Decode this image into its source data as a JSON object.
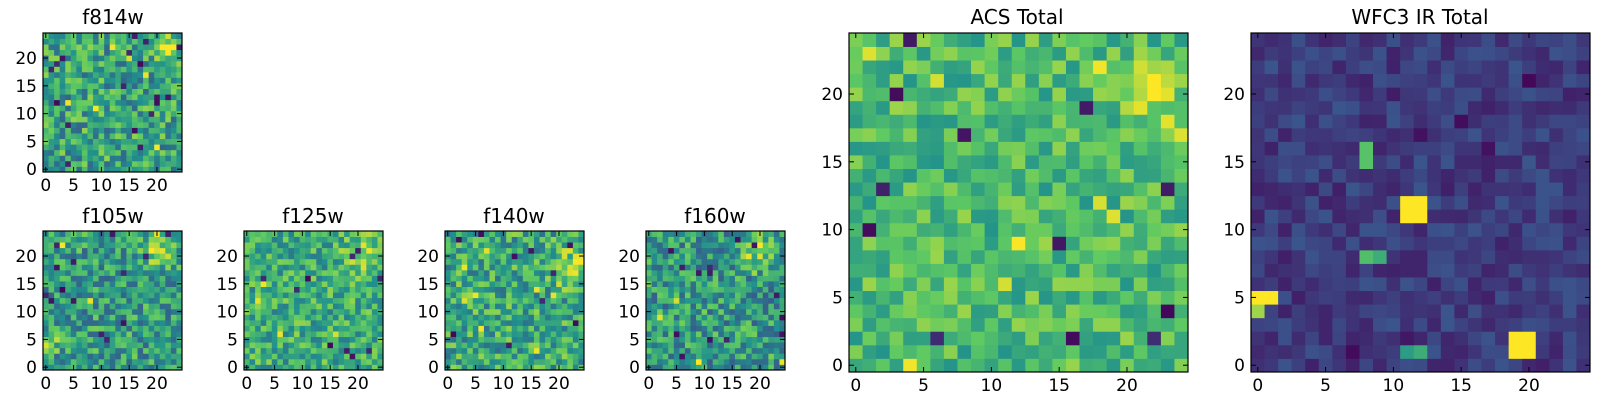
{
  "figure": {
    "colormap": [
      "#440154",
      "#3b528b",
      "#21918c",
      "#5ec962",
      "#fde725"
    ]
  },
  "chart_data": [
    {
      "id": "f814w",
      "type": "heatmap",
      "title": "f814w",
      "grid_size": 25,
      "xlim": [
        0,
        24
      ],
      "ylim": [
        0,
        24
      ],
      "xticks": [
        "0",
        "5",
        "10",
        "15",
        "20"
      ],
      "yticks": [
        "0",
        "5",
        "10",
        "15",
        "20"
      ],
      "seed": 11,
      "base": 0.58,
      "noise": 0.42,
      "warm_regions": [
        {
          "x": 22,
          "y": 22,
          "r": 4,
          "gain": 0.35
        }
      ],
      "dark_pixels": 18,
      "bright_pixels": 6,
      "hot_spots": []
    },
    {
      "id": "f105w",
      "type": "heatmap",
      "title": "f105w",
      "grid_size": 25,
      "xlim": [
        0,
        24
      ],
      "ylim": [
        0,
        24
      ],
      "xticks": [
        "0",
        "5",
        "10",
        "15",
        "20"
      ],
      "yticks": [
        "0",
        "5",
        "10",
        "15",
        "20"
      ],
      "seed": 23,
      "base": 0.55,
      "noise": 0.4,
      "warm_regions": [
        {
          "x": 20,
          "y": 21,
          "r": 5,
          "gain": 0.3
        },
        {
          "x": 1,
          "y": 5,
          "r": 3,
          "gain": 0.3
        }
      ],
      "dark_pixels": 14,
      "bright_pixels": 4,
      "hot_spots": []
    },
    {
      "id": "f125w",
      "type": "heatmap",
      "title": "f125w",
      "grid_size": 25,
      "xlim": [
        0,
        24
      ],
      "ylim": [
        0,
        24
      ],
      "xticks": [
        "0",
        "5",
        "10",
        "15",
        "20"
      ],
      "yticks": [
        "0",
        "5",
        "10",
        "15",
        "20"
      ],
      "seed": 37,
      "base": 0.62,
      "noise": 0.36,
      "warm_regions": [
        {
          "x": 21,
          "y": 20,
          "r": 5,
          "gain": 0.3
        }
      ],
      "dark_pixels": 10,
      "bright_pixels": 6,
      "hot_spots": []
    },
    {
      "id": "f140w",
      "type": "heatmap",
      "title": "f140w",
      "grid_size": 25,
      "xlim": [
        0,
        24
      ],
      "ylim": [
        0,
        24
      ],
      "xticks": [
        "0",
        "5",
        "10",
        "15",
        "20"
      ],
      "yticks": [
        "0",
        "5",
        "10",
        "15",
        "20"
      ],
      "seed": 41,
      "base": 0.6,
      "noise": 0.4,
      "warm_regions": [
        {
          "x": 22,
          "y": 18,
          "r": 5,
          "gain": 0.3
        },
        {
          "x": 4,
          "y": 13,
          "r": 2,
          "gain": 0.35
        }
      ],
      "dark_pixels": 10,
      "bright_pixels": 6,
      "hot_spots": []
    },
    {
      "id": "f160w",
      "type": "heatmap",
      "title": "f160w",
      "grid_size": 25,
      "xlim": [
        0,
        24
      ],
      "ylim": [
        0,
        24
      ],
      "xticks": [
        "0",
        "5",
        "10",
        "15",
        "20"
      ],
      "yticks": [
        "0",
        "5",
        "10",
        "15",
        "20"
      ],
      "seed": 53,
      "base": 0.54,
      "noise": 0.42,
      "warm_regions": [
        {
          "x": 20,
          "y": 21,
          "r": 5,
          "gain": 0.35
        }
      ],
      "dark_pixels": 14,
      "bright_pixels": 4,
      "hot_spots": []
    },
    {
      "id": "acs-total",
      "type": "heatmap",
      "title": "ACS Total",
      "grid_size": 25,
      "xlim": [
        0,
        24
      ],
      "ylim": [
        0,
        24
      ],
      "xticks": [
        "0",
        "5",
        "10",
        "15",
        "20"
      ],
      "yticks": [
        "0",
        "5",
        "10",
        "15",
        "20"
      ],
      "seed": 67,
      "base": 0.68,
      "noise": 0.28,
      "warm_regions": [
        {
          "x": 22,
          "y": 20,
          "r": 4,
          "gain": 0.25
        }
      ],
      "dark_pixels": 12,
      "bright_pixels": 10,
      "hot_spots": []
    },
    {
      "id": "wfc3-ir-total",
      "type": "heatmap",
      "title": "WFC3 IR Total",
      "grid_size": 25,
      "xlim": [
        0,
        24
      ],
      "ylim": [
        0,
        24
      ],
      "xticks": [
        "0",
        "5",
        "10",
        "15",
        "20"
      ],
      "yticks": [
        "0",
        "5",
        "10",
        "15",
        "20"
      ],
      "seed": 79,
      "base": 0.18,
      "noise": 0.14,
      "warm_regions": [],
      "dark_pixels": 10,
      "bright_pixels": 0,
      "hot_spots": [
        {
          "x": 11,
          "y": 12,
          "v": 1.0
        },
        {
          "x": 12,
          "y": 12,
          "v": 1.0
        },
        {
          "x": 11,
          "y": 11,
          "v": 1.0
        },
        {
          "x": 12,
          "y": 11,
          "v": 1.0
        },
        {
          "x": 19,
          "y": 2,
          "v": 1.0
        },
        {
          "x": 20,
          "y": 2,
          "v": 1.0
        },
        {
          "x": 19,
          "y": 1,
          "v": 1.0
        },
        {
          "x": 20,
          "y": 1,
          "v": 1.0
        },
        {
          "x": 0,
          "y": 5,
          "v": 1.0
        },
        {
          "x": 1,
          "y": 5,
          "v": 1.0
        },
        {
          "x": 0,
          "y": 4,
          "v": 0.85
        },
        {
          "x": 8,
          "y": 16,
          "v": 0.72
        },
        {
          "x": 8,
          "y": 15,
          "v": 0.72
        },
        {
          "x": 8,
          "y": 8,
          "v": 0.7
        },
        {
          "x": 9,
          "y": 8,
          "v": 0.62
        },
        {
          "x": 12,
          "y": 1,
          "v": 0.62
        },
        {
          "x": 11,
          "y": 1,
          "v": 0.55
        }
      ]
    }
  ]
}
